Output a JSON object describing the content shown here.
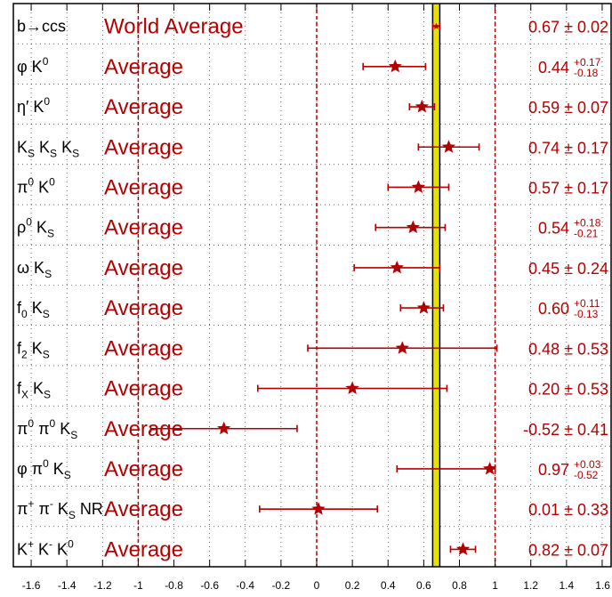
{
  "chart_data": {
    "type": "scatter",
    "subtype": "horizontal error-bar summary plot",
    "x_range": [
      -1.7,
      1.65
    ],
    "x_ticks": [
      -1.6,
      -1.4,
      -1.2,
      -1,
      -0.8,
      -0.6,
      -0.4,
      -0.2,
      0,
      0.2,
      0.4,
      0.6,
      0.8,
      1,
      1.2,
      1.4,
      1.6
    ],
    "x_tick_labels": [
      "-1.6",
      "-1.4",
      "-1.2",
      "-1",
      "-0.8",
      "-0.6",
      "-0.4",
      "-0.2",
      "0",
      "0.2",
      "0.4",
      "0.6",
      "0.8",
      "1",
      "1.2",
      "1.4",
      "1.6"
    ],
    "reference_lines": [
      -1,
      0,
      1
    ],
    "band": {
      "center": 0.67,
      "err": 0.02,
      "fill": "#e8e000",
      "edge": "#000000"
    },
    "rows": [
      {
        "process": "b→ccs",
        "label": "World Average",
        "value": 0.67,
        "err_plus": 0.02,
        "err_minus": 0.02,
        "value_text": "0.67 ± 0.02",
        "world_average": true
      },
      {
        "process": "φ K⁰",
        "label": "Average",
        "value": 0.44,
        "err_plus": 0.17,
        "err_minus": 0.18,
        "value_text": "0.44",
        "err_plus_text": "+0.17",
        "err_minus_text": "-0.18"
      },
      {
        "process": "η′ K⁰",
        "label": "Average",
        "value": 0.59,
        "err_plus": 0.07,
        "err_minus": 0.07,
        "value_text": "0.59 ± 0.07"
      },
      {
        "process": "K_S K_S K_S",
        "label": "Average",
        "value": 0.74,
        "err_plus": 0.17,
        "err_minus": 0.17,
        "value_text": "0.74 ± 0.17"
      },
      {
        "process": "π⁰ K⁰",
        "label": "Average",
        "value": 0.57,
        "err_plus": 0.17,
        "err_minus": 0.17,
        "value_text": "0.57 ± 0.17"
      },
      {
        "process": "ρ⁰ K_S",
        "label": "Average",
        "value": 0.54,
        "err_plus": 0.18,
        "err_minus": 0.21,
        "value_text": "0.54",
        "err_plus_text": "+0.18",
        "err_minus_text": "-0.21"
      },
      {
        "process": "ω K_S",
        "label": "Average",
        "value": 0.45,
        "err_plus": 0.24,
        "err_minus": 0.24,
        "value_text": "0.45 ± 0.24"
      },
      {
        "process": "f₀ K_S",
        "label": "Average",
        "value": 0.6,
        "err_plus": 0.11,
        "err_minus": 0.13,
        "value_text": "0.60",
        "err_plus_text": "+0.11",
        "err_minus_text": "-0.13"
      },
      {
        "process": "f₂ K_S",
        "label": "Average",
        "value": 0.48,
        "err_plus": 0.53,
        "err_minus": 0.53,
        "value_text": "0.48 ± 0.53"
      },
      {
        "process": "f_X K_S",
        "label": "Average",
        "value": 0.2,
        "err_plus": 0.53,
        "err_minus": 0.53,
        "value_text": "0.20 ± 0.53"
      },
      {
        "process": "π⁰ π⁰ K_S",
        "label": "Average",
        "value": -0.52,
        "err_plus": 0.41,
        "err_minus": 0.41,
        "value_text": "-0.52 ± 0.41"
      },
      {
        "process": "φ π⁰ K_S",
        "label": "Average",
        "value": 0.97,
        "err_plus": 0.03,
        "err_minus": 0.52,
        "value_text": "0.97",
        "err_plus_text": "+0.03",
        "err_minus_text": "-0.52"
      },
      {
        "process": "π⁺ π⁻ K_S NR",
        "label": "Average",
        "value": 0.01,
        "err_plus": 0.33,
        "err_minus": 0.33,
        "value_text": "0.01 ± 0.33"
      },
      {
        "process": "K⁺ K⁻ K⁰",
        "label": "Average",
        "value": 0.82,
        "err_plus": 0.07,
        "err_minus": 0.07,
        "value_text": "0.82 ± 0.07"
      }
    ],
    "grid": "dotted vertical lines at ticks",
    "marker_color": "#b40000"
  }
}
